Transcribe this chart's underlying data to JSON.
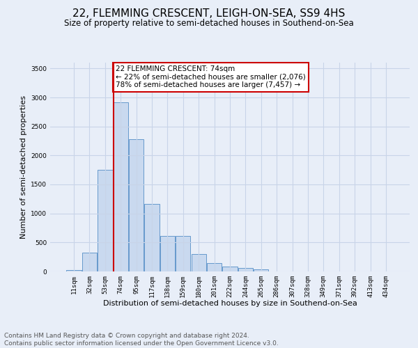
{
  "title": "22, FLEMMING CRESCENT, LEIGH-ON-SEA, SS9 4HS",
  "subtitle": "Size of property relative to semi-detached houses in Southend-on-Sea",
  "xlabel": "Distribution of semi-detached houses by size in Southend-on-Sea",
  "ylabel": "Number of semi-detached properties",
  "footer_line1": "Contains HM Land Registry data © Crown copyright and database right 2024.",
  "footer_line2": "Contains public sector information licensed under the Open Government Licence v3.0.",
  "bar_labels": [
    "11sqm",
    "32sqm",
    "53sqm",
    "74sqm",
    "95sqm",
    "117sqm",
    "138sqm",
    "159sqm",
    "180sqm",
    "201sqm",
    "222sqm",
    "244sqm",
    "265sqm",
    "286sqm",
    "307sqm",
    "328sqm",
    "349sqm",
    "371sqm",
    "392sqm",
    "413sqm",
    "434sqm"
  ],
  "bar_values": [
    20,
    330,
    1750,
    2920,
    2280,
    1170,
    610,
    610,
    300,
    140,
    80,
    60,
    40,
    5,
    3,
    2,
    1,
    1,
    1,
    1,
    1
  ],
  "bar_color": "#c9d9ef",
  "bar_edge_color": "#6699cc",
  "vline_x_index": 3,
  "vline_color": "#cc0000",
  "annotation_line1": "22 FLEMMING CRESCENT: 74sqm",
  "annotation_line2": "← 22% of semi-detached houses are smaller (2,076)",
  "annotation_line3": "78% of semi-detached houses are larger (7,457) →",
  "annotation_box_color": "#cc0000",
  "annotation_fill": "white",
  "ylim": [
    0,
    3600
  ],
  "yticks": [
    0,
    500,
    1000,
    1500,
    2000,
    2500,
    3000,
    3500
  ],
  "grid_color": "#c8d4e8",
  "bg_color": "#e8eef8",
  "plot_bg_color": "#e8eef8",
  "title_fontsize": 11,
  "subtitle_fontsize": 8.5,
  "tick_fontsize": 6.5,
  "ylabel_fontsize": 8,
  "xlabel_fontsize": 8,
  "annotation_fontsize": 7.5,
  "footer_fontsize": 6.5
}
